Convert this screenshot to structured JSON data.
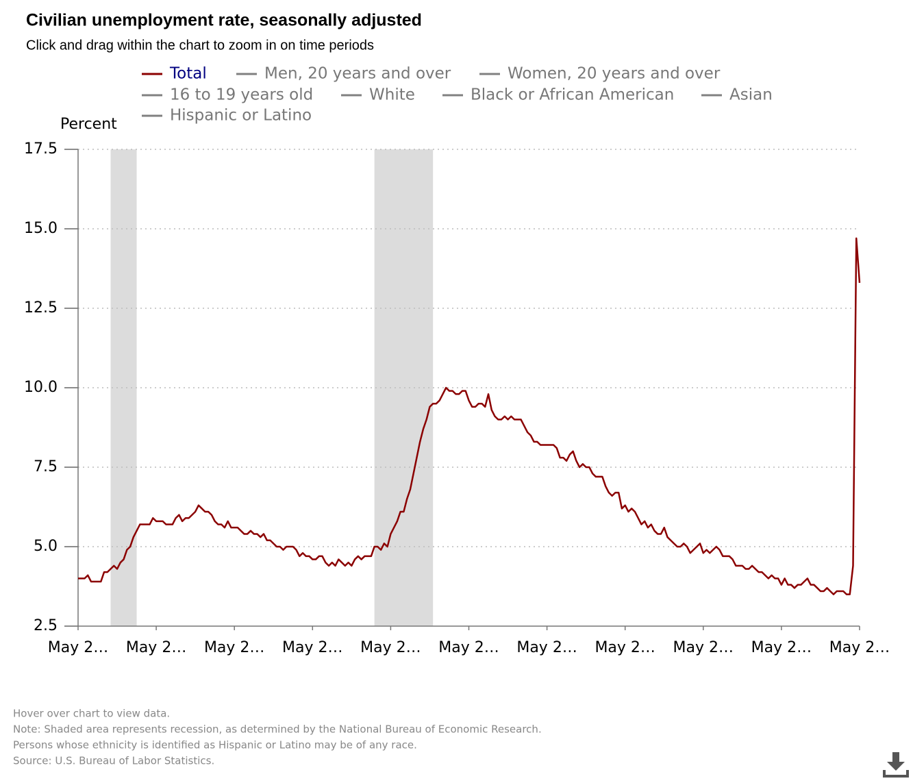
{
  "chart_data": {
    "type": "line",
    "title": "Civilian unemployment rate, seasonally adjusted",
    "subtitle": "Click and drag within the chart to zoom in on time periods",
    "y_label": "Percent",
    "categories": [
      "May 2…",
      null,
      null,
      null,
      null,
      null,
      null,
      null,
      null,
      null,
      null,
      null,
      null,
      null,
      null,
      null,
      null,
      null,
      null,
      null,
      null,
      null,
      null,
      null,
      "May 2…",
      null,
      null,
      null,
      null,
      null,
      null,
      null,
      null,
      null,
      null,
      null,
      null,
      null,
      null,
      null,
      null,
      null,
      null,
      null,
      null,
      null,
      null,
      null,
      "May 2…",
      null,
      null,
      null,
      null,
      null,
      null,
      null,
      null,
      null,
      null,
      null,
      null,
      null,
      null,
      null,
      null,
      null,
      null,
      null,
      null,
      null,
      null,
      null,
      "May 2…",
      null,
      null,
      null,
      null,
      null,
      null,
      null,
      null,
      null,
      null,
      null,
      null,
      null,
      null,
      null,
      null,
      null,
      null,
      null,
      null,
      null,
      null,
      null,
      "May 2…",
      null,
      null,
      null,
      null,
      null,
      null,
      null,
      null,
      null,
      null,
      null,
      null,
      null,
      null,
      null,
      null,
      null,
      null,
      null,
      null,
      null,
      null,
      null,
      "May 2…",
      null,
      null,
      null,
      null,
      null,
      null,
      null,
      null,
      null,
      null,
      null,
      null,
      null,
      null,
      null,
      null,
      null,
      null,
      null,
      null,
      null,
      null,
      null,
      "May 2…",
      null,
      null,
      null,
      null,
      null,
      null,
      null,
      null,
      null,
      null,
      null,
      null,
      null,
      null,
      null,
      null,
      null,
      null,
      null,
      null,
      null,
      null,
      null,
      "May 2…",
      null,
      null,
      null,
      null,
      null,
      null,
      null,
      null,
      null,
      null,
      null,
      null,
      null,
      null,
      null,
      null,
      null,
      null,
      null,
      null,
      null,
      null,
      null,
      "May 2…",
      null,
      null,
      null,
      null,
      null,
      null,
      null,
      null,
      null,
      null,
      null,
      null,
      null,
      null,
      null,
      null,
      null,
      null,
      null,
      null,
      null,
      null,
      null,
      "May 2…",
      null,
      null,
      null,
      null,
      null,
      null,
      null,
      null,
      null,
      null,
      null,
      null,
      null,
      null,
      null,
      null,
      null,
      null,
      null,
      null,
      null,
      null,
      null,
      "May 2…"
    ],
    "series": [
      {
        "name": "Total",
        "color": "#8b0000",
        "label_color": "#000080",
        "values": [
          4.0,
          4.0,
          4.0,
          4.1,
          3.9,
          3.9,
          3.9,
          3.9,
          4.2,
          4.2,
          4.3,
          4.4,
          4.3,
          4.5,
          4.6,
          4.9,
          5.0,
          5.3,
          5.5,
          5.7,
          5.7,
          5.7,
          5.7,
          5.9,
          5.8,
          5.8,
          5.8,
          5.7,
          5.7,
          5.7,
          5.9,
          6.0,
          5.8,
          5.9,
          5.9,
          6.0,
          6.1,
          6.3,
          6.2,
          6.1,
          6.1,
          6.0,
          5.8,
          5.7,
          5.7,
          5.6,
          5.8,
          5.6,
          5.6,
          5.6,
          5.5,
          5.4,
          5.4,
          5.5,
          5.4,
          5.4,
          5.3,
          5.4,
          5.2,
          5.2,
          5.1,
          5.0,
          5.0,
          4.9,
          5.0,
          5.0,
          5.0,
          4.9,
          4.7,
          4.8,
          4.7,
          4.7,
          4.6,
          4.6,
          4.7,
          4.7,
          4.5,
          4.4,
          4.5,
          4.4,
          4.6,
          4.5,
          4.4,
          4.5,
          4.4,
          4.6,
          4.7,
          4.6,
          4.7,
          4.7,
          4.7,
          5.0,
          5.0,
          4.9,
          5.1,
          5.0,
          5.4,
          5.6,
          5.8,
          6.1,
          6.1,
          6.5,
          6.8,
          7.3,
          7.8,
          8.3,
          8.7,
          9.0,
          9.4,
          9.5,
          9.5,
          9.6,
          9.8,
          10.0,
          9.9,
          9.9,
          9.8,
          9.8,
          9.9,
          9.9,
          9.6,
          9.4,
          9.4,
          9.5,
          9.5,
          9.4,
          9.8,
          9.3,
          9.1,
          9.0,
          9.0,
          9.1,
          9.0,
          9.1,
          9.0,
          9.0,
          9.0,
          8.8,
          8.6,
          8.5,
          8.3,
          8.3,
          8.2,
          8.2,
          8.2,
          8.2,
          8.2,
          8.1,
          7.8,
          7.8,
          7.7,
          7.9,
          8.0,
          7.7,
          7.5,
          7.6,
          7.5,
          7.5,
          7.3,
          7.2,
          7.2,
          7.2,
          6.9,
          6.7,
          6.6,
          6.7,
          6.7,
          6.2,
          6.3,
          6.1,
          6.2,
          6.1,
          5.9,
          5.7,
          5.8,
          5.6,
          5.7,
          5.5,
          5.4,
          5.4,
          5.6,
          5.3,
          5.2,
          5.1,
          5.0,
          5.0,
          5.1,
          5.0,
          4.8,
          4.9,
          5.0,
          5.1,
          4.8,
          4.9,
          4.8,
          4.9,
          5.0,
          4.9,
          4.7,
          4.7,
          4.7,
          4.6,
          4.4,
          4.4,
          4.4,
          4.3,
          4.3,
          4.4,
          4.3,
          4.2,
          4.2,
          4.1,
          4.0,
          4.1,
          4.0,
          4.0,
          3.8,
          4.0,
          3.8,
          3.8,
          3.7,
          3.8,
          3.8,
          3.9,
          4.0,
          3.8,
          3.8,
          3.7,
          3.6,
          3.6,
          3.7,
          3.6,
          3.5,
          3.6,
          3.6,
          3.6,
          3.5,
          3.5,
          4.4,
          14.7,
          13.3
        ]
      }
    ],
    "inactive_series": [
      "Men, 20 years and over",
      "Women, 20 years and over",
      "16 to 19 years old",
      "White",
      "Black or African American",
      "Asian",
      "Hispanic or Latino"
    ],
    "inactive_color": "#808080",
    "recessions": [
      [
        10,
        18
      ],
      [
        91,
        109
      ]
    ],
    "recession_color": "#dcdcdc",
    "ylim": [
      2.5,
      17.5
    ],
    "yticks": [
      2.5,
      {
        "value": 5,
        "label": "5.0"
      },
      7.5,
      {
        "value": 10,
        "label": "10.0"
      },
      12.5,
      {
        "value": 15,
        "label": "15.0"
      },
      17.5
    ],
    "grid": true,
    "notes": [
      "Hover over chart to view data.",
      "Note: Shaded area represents recession, as determined by the National Bureau of Economic Research.",
      "Persons whose ethnicity is identified as Hispanic or Latino may be of any race.",
      "Source: U.S. Bureau of Labor Statistics."
    ]
  }
}
